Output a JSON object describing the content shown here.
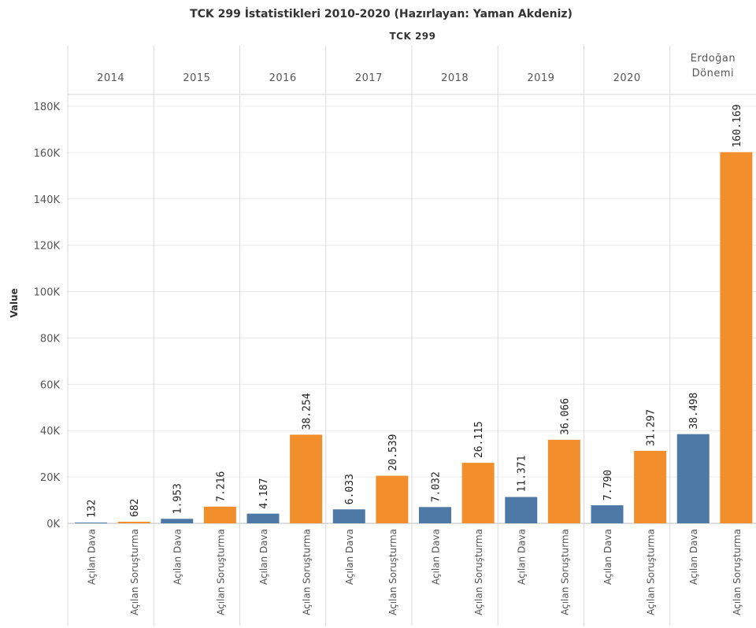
{
  "chart_data": {
    "type": "bar",
    "title": "TCK 299 İstatistikleri 2010-2020 (Hazırlayan: Yaman Akdeniz)",
    "header": "TCK 299",
    "ylabel": "Value",
    "ylim": [
      0,
      180000
    ],
    "yticks": [
      {
        "value": 0,
        "label": "0K"
      },
      {
        "value": 20000,
        "label": "20K"
      },
      {
        "value": 40000,
        "label": "40K"
      },
      {
        "value": 60000,
        "label": "60K"
      },
      {
        "value": 80000,
        "label": "80K"
      },
      {
        "value": 100000,
        "label": "100K"
      },
      {
        "value": 120000,
        "label": "120K"
      },
      {
        "value": 140000,
        "label": "140K"
      },
      {
        "value": 160000,
        "label": "160K"
      },
      {
        "value": 180000,
        "label": "180K"
      }
    ],
    "groups": [
      {
        "name": [
          "2014"
        ],
        "bars": [
          {
            "category": "Açılan Dava",
            "value": 132,
            "label": "132"
          },
          {
            "category": "Açılan Soruşturma",
            "value": 682,
            "label": "682"
          }
        ]
      },
      {
        "name": [
          "2015"
        ],
        "bars": [
          {
            "category": "Açılan Dava",
            "value": 1953,
            "label": "1.953"
          },
          {
            "category": "Açılan Soruşturma",
            "value": 7216,
            "label": "7.216"
          }
        ]
      },
      {
        "name": [
          "2016"
        ],
        "bars": [
          {
            "category": "Açılan Dava",
            "value": 4187,
            "label": "4.187"
          },
          {
            "category": "Açılan Soruşturma",
            "value": 38254,
            "label": "38.254"
          }
        ]
      },
      {
        "name": [
          "2017"
        ],
        "bars": [
          {
            "category": "Açılan Dava",
            "value": 6033,
            "label": "6.033"
          },
          {
            "category": "Açılan Soruşturma",
            "value": 20539,
            "label": "20.539"
          }
        ]
      },
      {
        "name": [
          "2018"
        ],
        "bars": [
          {
            "category": "Açılan Dava",
            "value": 7032,
            "label": "7.032"
          },
          {
            "category": "Açılan Soruşturma",
            "value": 26115,
            "label": "26.115"
          }
        ]
      },
      {
        "name": [
          "2019"
        ],
        "bars": [
          {
            "category": "Açılan Dava",
            "value": 11371,
            "label": "11.371"
          },
          {
            "category": "Açılan Soruşturma",
            "value": 36066,
            "label": "36.066"
          }
        ]
      },
      {
        "name": [
          "2020"
        ],
        "bars": [
          {
            "category": "Açılan Dava",
            "value": 7790,
            "label": "7.790"
          },
          {
            "category": "Açılan Soruşturma",
            "value": 31297,
            "label": "31.297"
          }
        ]
      },
      {
        "name": [
          "Erdoğan",
          "Dönemi"
        ],
        "bars": [
          {
            "category": "Açılan Dava",
            "value": 38498,
            "label": "38.498"
          },
          {
            "category": "Açılan Soruşturma",
            "value": 160169,
            "label": "160.169"
          }
        ]
      }
    ],
    "colors": {
      "Açılan Dava": "#4e79a7",
      "Açılan Soruşturma": "#f28e2b"
    },
    "grid": true,
    "legend": "none"
  }
}
